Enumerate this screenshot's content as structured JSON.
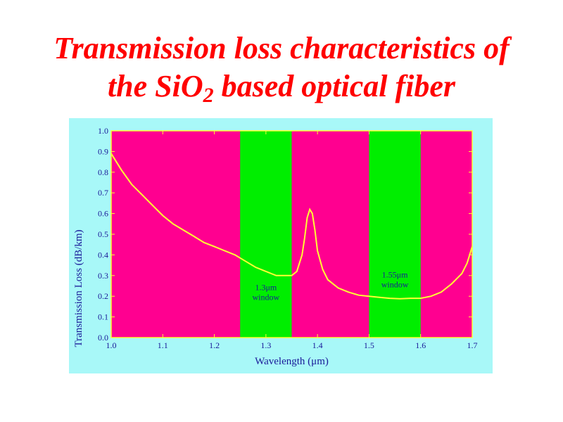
{
  "slide": {
    "title_line1": "Transmission loss characteristics of",
    "title_line2_pre": "the SiO",
    "title_line2_sub": "2",
    "title_line2_post": " based optical fiber"
  },
  "colors": {
    "title": "#ff0000",
    "panel_background": "#a8f8f8",
    "plot_background": "#ff0090",
    "window_band": "#00ee00",
    "curve": "#ffff33",
    "axis_text": "#1a1a99"
  },
  "chart_data": {
    "type": "line",
    "title": "",
    "xlabel": "Wavelength (μm)",
    "ylabel": "Transmission Loss (dB/km)",
    "xlim": [
      1.0,
      1.7
    ],
    "ylim": [
      0.0,
      1.0
    ],
    "xticks": [
      1.0,
      1.1,
      1.2,
      1.3,
      1.4,
      1.5,
      1.6,
      1.7
    ],
    "yticks": [
      0.0,
      0.1,
      0.2,
      0.3,
      0.4,
      0.5,
      0.6,
      0.7,
      0.8,
      0.9,
      1.0
    ],
    "grid": false,
    "bands": [
      {
        "x0": 1.25,
        "x1": 1.35,
        "label_line1": "1.3μm",
        "label_line2": "window",
        "label_y": 0.23
      },
      {
        "x0": 1.5,
        "x1": 1.6,
        "label_line1": "1.55μm",
        "label_line2": "window",
        "label_y": 0.29
      }
    ],
    "series": [
      {
        "x": [
          1.0,
          1.02,
          1.04,
          1.06,
          1.08,
          1.1,
          1.12,
          1.14,
          1.16,
          1.18,
          1.2,
          1.22,
          1.24,
          1.26,
          1.28,
          1.3,
          1.32,
          1.34,
          1.35,
          1.36,
          1.37,
          1.375,
          1.38,
          1.385,
          1.39,
          1.395,
          1.4,
          1.41,
          1.42,
          1.44,
          1.46,
          1.48,
          1.5,
          1.52,
          1.54,
          1.56,
          1.58,
          1.6,
          1.62,
          1.64,
          1.66,
          1.68,
          1.69,
          1.7
        ],
        "y": [
          0.89,
          0.81,
          0.74,
          0.69,
          0.64,
          0.59,
          0.55,
          0.52,
          0.49,
          0.46,
          0.44,
          0.42,
          0.4,
          0.37,
          0.34,
          0.32,
          0.3,
          0.3,
          0.3,
          0.32,
          0.4,
          0.48,
          0.58,
          0.62,
          0.6,
          0.52,
          0.42,
          0.33,
          0.28,
          0.24,
          0.22,
          0.205,
          0.2,
          0.195,
          0.19,
          0.188,
          0.19,
          0.19,
          0.2,
          0.22,
          0.26,
          0.31,
          0.36,
          0.44
        ]
      }
    ]
  }
}
